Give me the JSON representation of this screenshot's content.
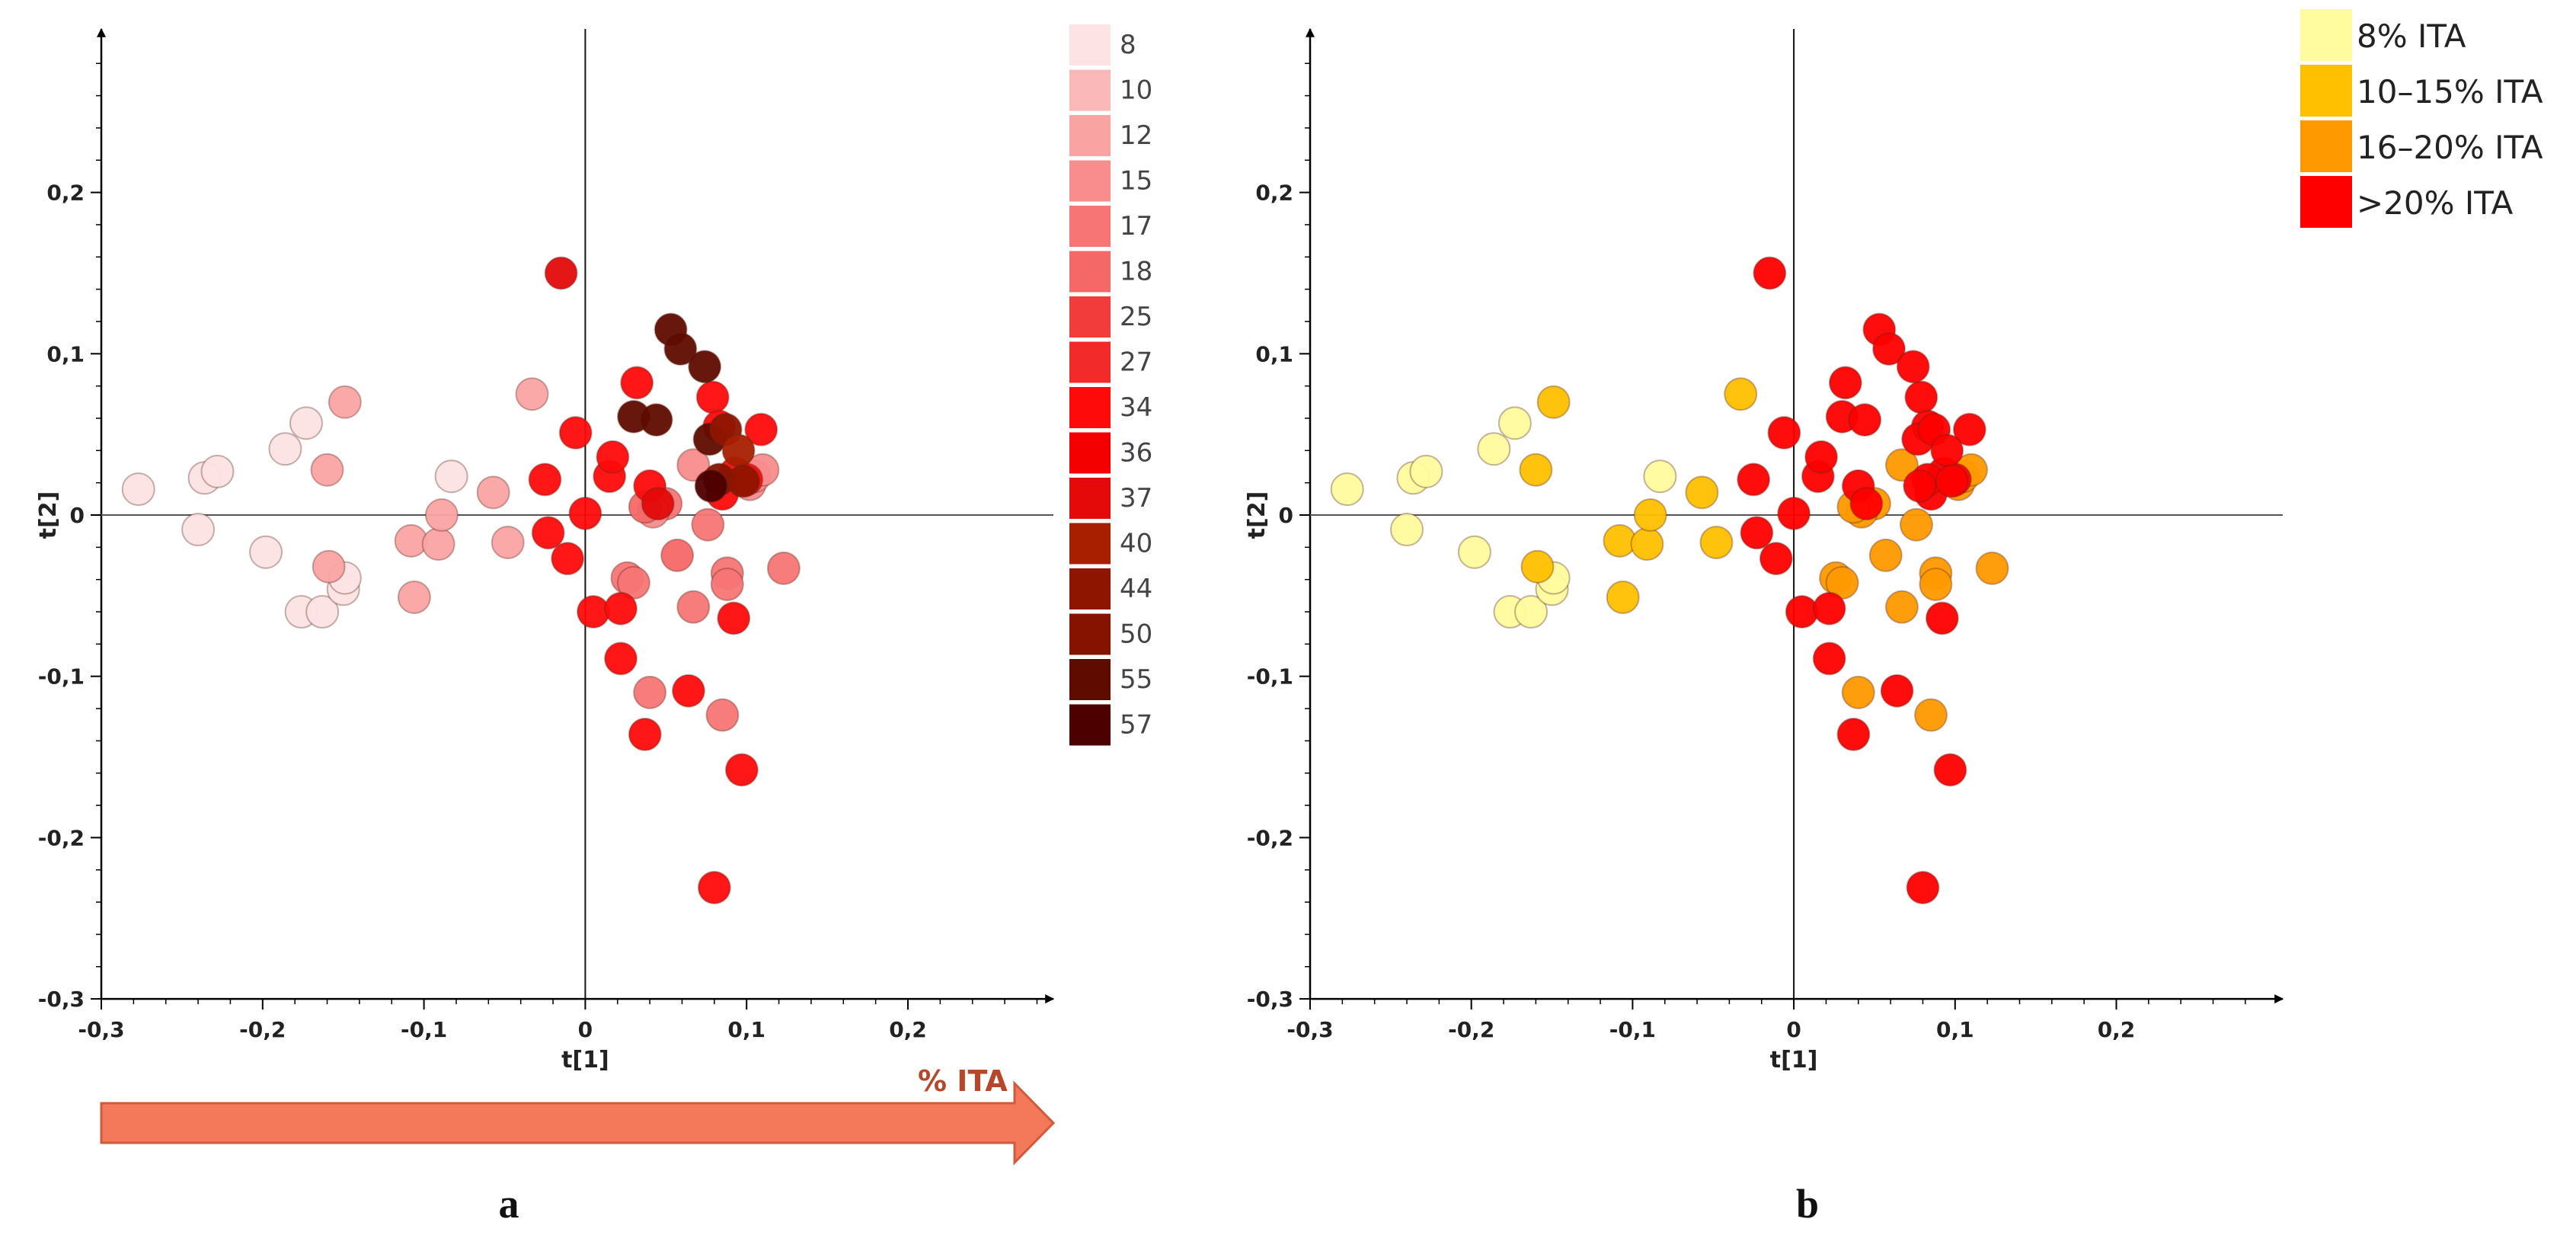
{
  "chart_data": [
    {
      "panel_label": "a",
      "type": "scatter",
      "xlabel": "t[1]",
      "ylabel": "t[2]",
      "xlim": [
        -0.3,
        0.3
      ],
      "ylim": [
        -0.3,
        0.3
      ],
      "xticks": [
        -0.3,
        -0.2,
        -0.1,
        0,
        0.1,
        0.2
      ],
      "yticks": [
        -0.3,
        -0.2,
        -0.1,
        0,
        0.1,
        0.2
      ],
      "xtick_labels": [
        "-0,3",
        "-0,2",
        "-0,1",
        "0",
        "0,1",
        "0,2"
      ],
      "ytick_labels": [
        "-0,3",
        "-0,2",
        "-0,1",
        "0",
        "0,1",
        "0,2"
      ],
      "legend_position": "right",
      "legend": [
        {
          "label": "8",
          "color": "#FDE3E3"
        },
        {
          "label": "10",
          "color": "#FBB8B8"
        },
        {
          "label": "12",
          "color": "#FAA3A3"
        },
        {
          "label": "15",
          "color": "#F98C8C"
        },
        {
          "label": "17",
          "color": "#F77575"
        },
        {
          "label": "18",
          "color": "#F56868"
        },
        {
          "label": "25",
          "color": "#F23C3C"
        },
        {
          "label": "27",
          "color": "#F22A2A"
        },
        {
          "label": "34",
          "color": "#FF0A0A"
        },
        {
          "label": "36",
          "color": "#F40000"
        },
        {
          "label": "37",
          "color": "#E40A0A"
        },
        {
          "label": "40",
          "color": "#A81F00"
        },
        {
          "label": "44",
          "color": "#8E1500"
        },
        {
          "label": "50",
          "color": "#861200"
        },
        {
          "label": "55",
          "color": "#600B00"
        },
        {
          "label": "57",
          "color": "#4C0000"
        }
      ],
      "arrow_label": "% ITA",
      "points": [
        {
          "x": -0.277,
          "y": 0.016,
          "group": "8"
        },
        {
          "x": -0.24,
          "y": -0.009,
          "group": "8"
        },
        {
          "x": -0.236,
          "y": 0.023,
          "group": "8"
        },
        {
          "x": -0.228,
          "y": 0.027,
          "group": "8"
        },
        {
          "x": -0.198,
          "y": -0.023,
          "group": "8"
        },
        {
          "x": -0.186,
          "y": 0.041,
          "group": "8"
        },
        {
          "x": -0.173,
          "y": 0.057,
          "group": "8"
        },
        {
          "x": -0.176,
          "y": -0.06,
          "group": "8"
        },
        {
          "x": -0.163,
          "y": -0.06,
          "group": "8"
        },
        {
          "x": -0.15,
          "y": -0.046,
          "group": "8"
        },
        {
          "x": -0.149,
          "y": -0.039,
          "group": "8"
        },
        {
          "x": -0.083,
          "y": 0.024,
          "group": "8"
        },
        {
          "x": -0.16,
          "y": 0.028,
          "group": "12"
        },
        {
          "x": -0.159,
          "y": -0.032,
          "group": "12"
        },
        {
          "x": -0.149,
          "y": 0.07,
          "group": "12"
        },
        {
          "x": -0.108,
          "y": -0.016,
          "group": "12"
        },
        {
          "x": -0.106,
          "y": -0.051,
          "group": "12"
        },
        {
          "x": -0.091,
          "y": -0.018,
          "group": "12"
        },
        {
          "x": -0.089,
          "y": 0.0,
          "group": "12"
        },
        {
          "x": -0.057,
          "y": 0.014,
          "group": "12"
        },
        {
          "x": -0.048,
          "y": -0.017,
          "group": "12"
        },
        {
          "x": -0.033,
          "y": 0.075,
          "group": "12"
        },
        {
          "x": 0.026,
          "y": -0.039,
          "group": "17"
        },
        {
          "x": 0.03,
          "y": -0.042,
          "group": "17"
        },
        {
          "x": 0.04,
          "y": -0.11,
          "group": "17"
        },
        {
          "x": 0.05,
          "y": 0.007,
          "group": "17"
        },
        {
          "x": 0.067,
          "y": -0.057,
          "group": "17"
        },
        {
          "x": 0.076,
          "y": -0.006,
          "group": "17"
        },
        {
          "x": 0.085,
          "y": -0.124,
          "group": "17"
        },
        {
          "x": 0.088,
          "y": -0.036,
          "group": "17"
        },
        {
          "x": 0.088,
          "y": -0.043,
          "group": "17"
        },
        {
          "x": 0.123,
          "y": -0.033,
          "group": "17"
        },
        {
          "x": 0.042,
          "y": 0.002,
          "group": "15"
        },
        {
          "x": 0.067,
          "y": 0.031,
          "group": "15"
        },
        {
          "x": 0.102,
          "y": 0.019,
          "group": "15"
        },
        {
          "x": 0.105,
          "y": 0.024,
          "group": "15"
        },
        {
          "x": 0.11,
          "y": 0.028,
          "group": "15"
        },
        {
          "x": 0.037,
          "y": 0.005,
          "group": "18"
        },
        {
          "x": 0.057,
          "y": -0.025,
          "group": "18"
        },
        {
          "x": -0.015,
          "y": 0.15,
          "group": "37"
        },
        {
          "x": -0.025,
          "y": 0.022,
          "group": "34"
        },
        {
          "x": -0.023,
          "y": -0.011,
          "group": "34"
        },
        {
          "x": -0.011,
          "y": -0.027,
          "group": "34"
        },
        {
          "x": -0.006,
          "y": 0.051,
          "group": "34"
        },
        {
          "x": 0.0,
          "y": 0.001,
          "group": "34"
        },
        {
          "x": 0.005,
          "y": -0.06,
          "group": "34"
        },
        {
          "x": 0.015,
          "y": 0.024,
          "group": "34"
        },
        {
          "x": 0.017,
          "y": 0.036,
          "group": "34"
        },
        {
          "x": 0.022,
          "y": -0.058,
          "group": "34"
        },
        {
          "x": 0.022,
          "y": -0.089,
          "group": "34"
        },
        {
          "x": 0.032,
          "y": 0.082,
          "group": "34"
        },
        {
          "x": 0.037,
          "y": -0.136,
          "group": "34"
        },
        {
          "x": 0.04,
          "y": 0.018,
          "group": "34"
        },
        {
          "x": 0.064,
          "y": -0.109,
          "group": "34"
        },
        {
          "x": 0.079,
          "y": 0.073,
          "group": "34"
        },
        {
          "x": 0.083,
          "y": 0.055,
          "group": "34"
        },
        {
          "x": 0.085,
          "y": 0.013,
          "group": "34"
        },
        {
          "x": 0.093,
          "y": 0.026,
          "group": "34"
        },
        {
          "x": 0.092,
          "y": -0.064,
          "group": "34"
        },
        {
          "x": 0.097,
          "y": -0.158,
          "group": "34"
        },
        {
          "x": 0.1,
          "y": 0.022,
          "group": "34"
        },
        {
          "x": 0.109,
          "y": 0.053,
          "group": "34"
        },
        {
          "x": 0.08,
          "y": -0.231,
          "group": "34"
        },
        {
          "x": 0.045,
          "y": 0.007,
          "group": "37"
        },
        {
          "x": 0.03,
          "y": 0.061,
          "group": "55"
        },
        {
          "x": 0.044,
          "y": 0.059,
          "group": "55"
        },
        {
          "x": 0.053,
          "y": 0.115,
          "group": "55"
        },
        {
          "x": 0.059,
          "y": 0.103,
          "group": "55"
        },
        {
          "x": 0.074,
          "y": 0.092,
          "group": "55"
        },
        {
          "x": 0.077,
          "y": 0.047,
          "group": "55"
        },
        {
          "x": 0.087,
          "y": 0.053,
          "group": "44"
        },
        {
          "x": 0.095,
          "y": 0.04,
          "group": "40"
        },
        {
          "x": 0.083,
          "y": 0.022,
          "group": "50"
        },
        {
          "x": 0.098,
          "y": 0.021,
          "group": "44"
        },
        {
          "x": 0.078,
          "y": 0.018,
          "group": "57"
        }
      ]
    },
    {
      "panel_label": "b",
      "type": "scatter",
      "xlabel": "t[1]",
      "ylabel": "t[2]",
      "xlim": [
        -0.3,
        0.3
      ],
      "ylim": [
        -0.3,
        0.3
      ],
      "xticks": [
        -0.3,
        -0.2,
        -0.1,
        0,
        0.1,
        0.2
      ],
      "yticks": [
        -0.3,
        -0.2,
        -0.1,
        0,
        0.1,
        0.2
      ],
      "xtick_labels": [
        "-0,3",
        "-0,2",
        "-0,1",
        "0",
        "0,1",
        "0,2"
      ],
      "ytick_labels": [
        "-0,3",
        "-0,2",
        "-0,1",
        "0",
        "0,1",
        "0,2"
      ],
      "legend_position": "top-right",
      "legend": [
        {
          "label": "8% ITA",
          "color": "#FFFB9E"
        },
        {
          "label": "10–15% ITA",
          "color": "#FFC000"
        },
        {
          "label": "16–20% ITA",
          "color": "#FF9900"
        },
        {
          "label": ">20% ITA",
          "color": "#FF0000"
        }
      ],
      "points": [
        {
          "x": -0.277,
          "y": 0.016,
          "group": "8% ITA"
        },
        {
          "x": -0.24,
          "y": -0.009,
          "group": "8% ITA"
        },
        {
          "x": -0.236,
          "y": 0.023,
          "group": "8% ITA"
        },
        {
          "x": -0.228,
          "y": 0.027,
          "group": "8% ITA"
        },
        {
          "x": -0.198,
          "y": -0.023,
          "group": "8% ITA"
        },
        {
          "x": -0.186,
          "y": 0.041,
          "group": "8% ITA"
        },
        {
          "x": -0.173,
          "y": 0.057,
          "group": "8% ITA"
        },
        {
          "x": -0.176,
          "y": -0.06,
          "group": "8% ITA"
        },
        {
          "x": -0.163,
          "y": -0.06,
          "group": "8% ITA"
        },
        {
          "x": -0.15,
          "y": -0.046,
          "group": "8% ITA"
        },
        {
          "x": -0.149,
          "y": -0.039,
          "group": "8% ITA"
        },
        {
          "x": -0.083,
          "y": 0.024,
          "group": "8% ITA"
        },
        {
          "x": -0.16,
          "y": 0.028,
          "group": "10–15% ITA"
        },
        {
          "x": -0.159,
          "y": -0.032,
          "group": "10–15% ITA"
        },
        {
          "x": -0.149,
          "y": 0.07,
          "group": "10–15% ITA"
        },
        {
          "x": -0.108,
          "y": -0.016,
          "group": "10–15% ITA"
        },
        {
          "x": -0.106,
          "y": -0.051,
          "group": "10–15% ITA"
        },
        {
          "x": -0.091,
          "y": -0.018,
          "group": "10–15% ITA"
        },
        {
          "x": -0.089,
          "y": 0.0,
          "group": "10–15% ITA"
        },
        {
          "x": -0.057,
          "y": 0.014,
          "group": "10–15% ITA"
        },
        {
          "x": -0.048,
          "y": -0.017,
          "group": "10–15% ITA"
        },
        {
          "x": -0.033,
          "y": 0.075,
          "group": "10–15% ITA"
        },
        {
          "x": 0.026,
          "y": -0.039,
          "group": "16–20% ITA"
        },
        {
          "x": 0.03,
          "y": -0.042,
          "group": "16–20% ITA"
        },
        {
          "x": 0.04,
          "y": -0.11,
          "group": "16–20% ITA"
        },
        {
          "x": 0.05,
          "y": 0.007,
          "group": "16–20% ITA"
        },
        {
          "x": 0.067,
          "y": -0.057,
          "group": "16–20% ITA"
        },
        {
          "x": 0.076,
          "y": -0.006,
          "group": "16–20% ITA"
        },
        {
          "x": 0.085,
          "y": -0.124,
          "group": "16–20% ITA"
        },
        {
          "x": 0.088,
          "y": -0.036,
          "group": "16–20% ITA"
        },
        {
          "x": 0.088,
          "y": -0.043,
          "group": "16–20% ITA"
        },
        {
          "x": 0.123,
          "y": -0.033,
          "group": "16–20% ITA"
        },
        {
          "x": 0.042,
          "y": 0.002,
          "group": "16–20% ITA"
        },
        {
          "x": 0.067,
          "y": 0.031,
          "group": "16–20% ITA"
        },
        {
          "x": 0.102,
          "y": 0.019,
          "group": "16–20% ITA"
        },
        {
          "x": 0.105,
          "y": 0.024,
          "group": "16–20% ITA"
        },
        {
          "x": 0.11,
          "y": 0.028,
          "group": "16–20% ITA"
        },
        {
          "x": 0.037,
          "y": 0.005,
          "group": "16–20% ITA"
        },
        {
          "x": 0.057,
          "y": -0.025,
          "group": "16–20% ITA"
        },
        {
          "x": -0.015,
          "y": 0.15,
          "group": ">20% ITA"
        },
        {
          "x": -0.025,
          "y": 0.022,
          "group": ">20% ITA"
        },
        {
          "x": -0.023,
          "y": -0.011,
          "group": ">20% ITA"
        },
        {
          "x": -0.011,
          "y": -0.027,
          "group": ">20% ITA"
        },
        {
          "x": -0.006,
          "y": 0.051,
          "group": ">20% ITA"
        },
        {
          "x": 0.0,
          "y": 0.001,
          "group": ">20% ITA"
        },
        {
          "x": 0.005,
          "y": -0.06,
          "group": ">20% ITA"
        },
        {
          "x": 0.015,
          "y": 0.024,
          "group": ">20% ITA"
        },
        {
          "x": 0.017,
          "y": 0.036,
          "group": ">20% ITA"
        },
        {
          "x": 0.022,
          "y": -0.058,
          "group": ">20% ITA"
        },
        {
          "x": 0.022,
          "y": -0.089,
          "group": ">20% ITA"
        },
        {
          "x": 0.032,
          "y": 0.082,
          "group": ">20% ITA"
        },
        {
          "x": 0.037,
          "y": -0.136,
          "group": ">20% ITA"
        },
        {
          "x": 0.04,
          "y": 0.018,
          "group": ">20% ITA"
        },
        {
          "x": 0.064,
          "y": -0.109,
          "group": ">20% ITA"
        },
        {
          "x": 0.079,
          "y": 0.073,
          "group": ">20% ITA"
        },
        {
          "x": 0.083,
          "y": 0.055,
          "group": ">20% ITA"
        },
        {
          "x": 0.085,
          "y": 0.013,
          "group": ">20% ITA"
        },
        {
          "x": 0.093,
          "y": 0.026,
          "group": ">20% ITA"
        },
        {
          "x": 0.092,
          "y": -0.064,
          "group": ">20% ITA"
        },
        {
          "x": 0.097,
          "y": -0.158,
          "group": ">20% ITA"
        },
        {
          "x": 0.1,
          "y": 0.022,
          "group": ">20% ITA"
        },
        {
          "x": 0.109,
          "y": 0.053,
          "group": ">20% ITA"
        },
        {
          "x": 0.08,
          "y": -0.231,
          "group": ">20% ITA"
        },
        {
          "x": 0.045,
          "y": 0.007,
          "group": ">20% ITA"
        },
        {
          "x": 0.03,
          "y": 0.061,
          "group": ">20% ITA"
        },
        {
          "x": 0.044,
          "y": 0.059,
          "group": ">20% ITA"
        },
        {
          "x": 0.053,
          "y": 0.115,
          "group": ">20% ITA"
        },
        {
          "x": 0.059,
          "y": 0.103,
          "group": ">20% ITA"
        },
        {
          "x": 0.074,
          "y": 0.092,
          "group": ">20% ITA"
        },
        {
          "x": 0.077,
          "y": 0.047,
          "group": ">20% ITA"
        },
        {
          "x": 0.087,
          "y": 0.053,
          "group": ">20% ITA"
        },
        {
          "x": 0.095,
          "y": 0.04,
          "group": ">20% ITA"
        },
        {
          "x": 0.083,
          "y": 0.022,
          "group": ">20% ITA"
        },
        {
          "x": 0.098,
          "y": 0.021,
          "group": ">20% ITA"
        },
        {
          "x": 0.078,
          "y": 0.018,
          "group": ">20% ITA"
        }
      ]
    }
  ]
}
